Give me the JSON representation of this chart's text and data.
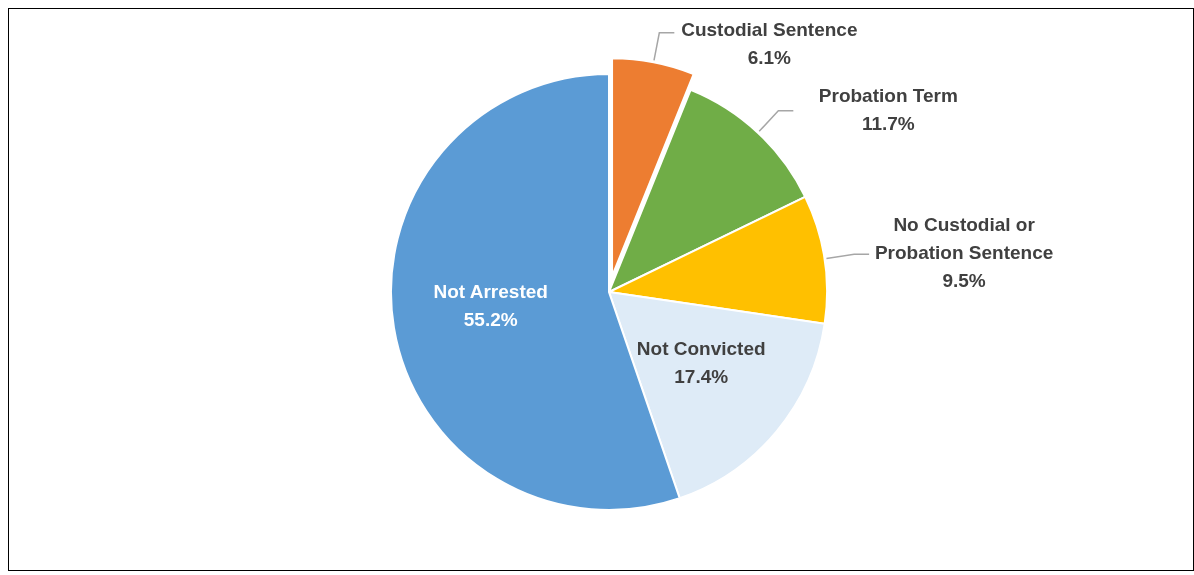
{
  "chart_data": {
    "type": "pie",
    "categories": [
      "Custodial Sentence",
      "Probation Term",
      "No Custodial or Probation Sentence",
      "Not Convicted",
      "Not Arrested"
    ],
    "values": [
      6.1,
      11.7,
      9.5,
      17.4,
      55.2
    ],
    "value_labels": [
      "6.1%",
      "11.7%",
      "9.5%",
      "17.4%",
      "55.2%"
    ],
    "colors": [
      "#ed7d31",
      "#70ad47",
      "#ffc000",
      "#deebf7",
      "#5b9bd5"
    ]
  }
}
